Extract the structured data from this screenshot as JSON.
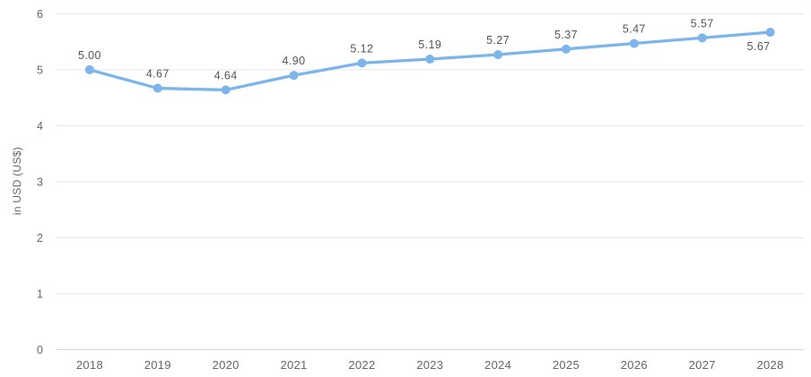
{
  "chart_data": {
    "type": "line",
    "title": "",
    "categories": [
      "2018",
      "2019",
      "2020",
      "2021",
      "2022",
      "2023",
      "2024",
      "2025",
      "2026",
      "2027",
      "2028"
    ],
    "series": [
      {
        "name": "price",
        "values": [
          5.0,
          4.67,
          4.64,
          4.9,
          5.12,
          5.19,
          5.27,
          5.37,
          5.47,
          5.57,
          5.67
        ],
        "data_labels": [
          "5.00",
          "4.67",
          "4.64",
          "4.90",
          "5.12",
          "5.19",
          "5.27",
          "5.37",
          "5.47",
          "5.57",
          "5.67"
        ]
      }
    ],
    "xlabel": "",
    "ylabel": "in USD (US$)",
    "ylim": [
      0,
      6
    ],
    "yticks": [
      0,
      1,
      2,
      3,
      4,
      5,
      6
    ],
    "grid": true,
    "legend": "none",
    "colors": {
      "line": "#7cb5ec",
      "marker": "#7cb5ec",
      "gridline": "#e6e6e6",
      "axis_line": "#ccd6eb",
      "tick_label": "#666666",
      "data_label": "#555555"
    }
  }
}
